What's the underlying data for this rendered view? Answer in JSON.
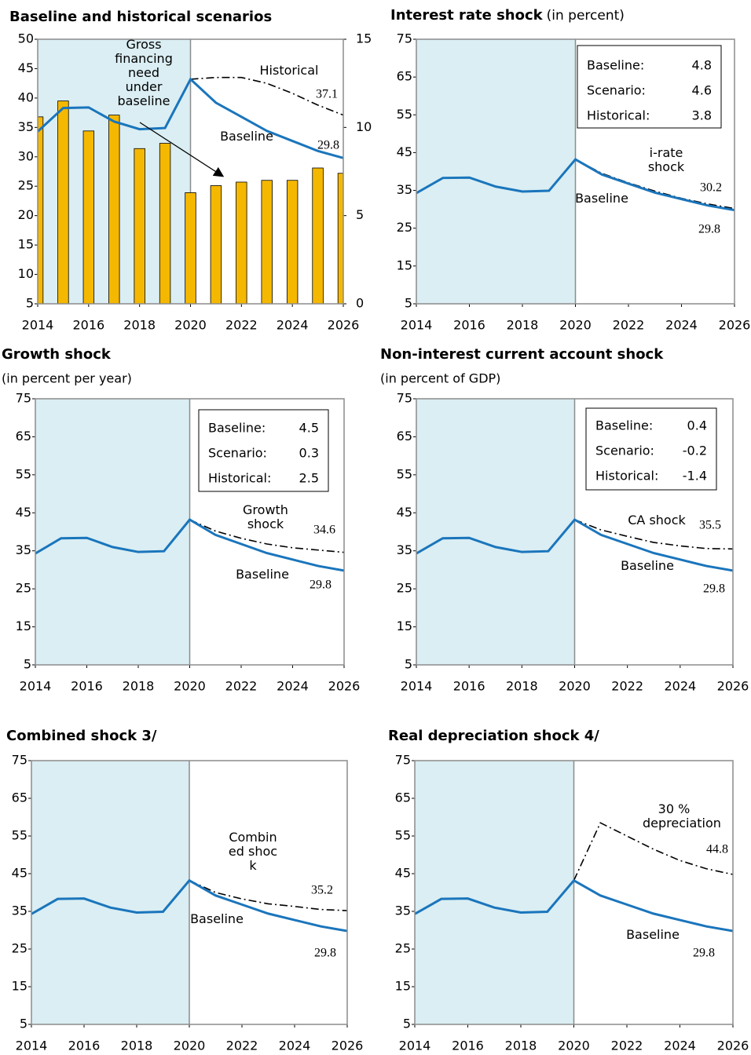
{
  "chart_data": [
    {
      "type": "combo",
      "title": "Baseline and historical scenarios",
      "x": [
        2014,
        2015,
        2016,
        2017,
        2018,
        2019,
        2020,
        2021,
        2022,
        2023,
        2024,
        2025,
        2026
      ],
      "xlim": [
        2014,
        2026
      ],
      "xticks": [
        2014,
        2016,
        2018,
        2020,
        2022,
        2024,
        2026
      ],
      "ylim": [
        5,
        50
      ],
      "yticks": [
        5,
        10,
        15,
        20,
        25,
        30,
        35,
        40,
        45,
        50
      ],
      "y2lim": [
        0,
        15
      ],
      "y2ticks": [
        0,
        5,
        10,
        15
      ],
      "shaded_x": [
        2014,
        2020
      ],
      "shade_color": "#daeef3",
      "series": [
        {
          "name": "Gross financing need under baseline",
          "kind": "bar",
          "axis": "y2",
          "color": "#f5b800",
          "values": [
            10.6,
            11.5,
            9.8,
            10.7,
            8.8,
            9.1,
            6.3,
            6.7,
            6.9,
            7.0,
            7.0,
            7.7,
            7.4
          ]
        },
        {
          "name": "Baseline",
          "kind": "line",
          "line_style": "solid",
          "color": "#1a75bc",
          "values": [
            34.3,
            38.3,
            38.4,
            36.0,
            34.7,
            34.9,
            43.2,
            39.2,
            36.8,
            34.4,
            32.7,
            31.0,
            29.8
          ]
        },
        {
          "name": "Historical",
          "kind": "line",
          "line_style": "dash-dot",
          "color": "#000000",
          "values": [
            null,
            null,
            null,
            null,
            null,
            null,
            43.2,
            43.5,
            43.5,
            42.5,
            40.8,
            38.8,
            37.1
          ]
        }
      ]
    },
    {
      "type": "line",
      "title": "Interest rate shock",
      "subtitle": "(in percent)",
      "x": [
        2014,
        2015,
        2016,
        2017,
        2018,
        2019,
        2020,
        2021,
        2022,
        2023,
        2024,
        2025,
        2026
      ],
      "xlim": [
        2014,
        2026
      ],
      "xticks": [
        2014,
        2016,
        2018,
        2020,
        2022,
        2024,
        2026
      ],
      "ylim": [
        5,
        75
      ],
      "yticks": [
        5,
        15,
        25,
        35,
        45,
        55,
        65,
        75
      ],
      "shaded_x": [
        2014,
        2020
      ],
      "shade_color": "#daeef3",
      "inset": [
        {
          "label": "Baseline:",
          "value": 4.8
        },
        {
          "label": "Scenario:",
          "value": 4.6
        },
        {
          "label": "Historical:",
          "value": 3.8
        }
      ],
      "series": [
        {
          "name": "Baseline",
          "kind": "line",
          "line_style": "solid",
          "color": "#1a75bc",
          "values": [
            34.3,
            38.3,
            38.4,
            36.0,
            34.7,
            34.9,
            43.2,
            39.2,
            36.8,
            34.4,
            32.7,
            31.0,
            29.8
          ]
        },
        {
          "name": "i-rate shock",
          "kind": "line",
          "line_style": "dash-dot",
          "color": "#000000",
          "values": [
            null,
            null,
            null,
            null,
            null,
            null,
            43.2,
            39.5,
            37.0,
            34.8,
            32.9,
            31.4,
            30.2
          ]
        }
      ]
    },
    {
      "type": "line",
      "title": "Growth shock",
      "subtitle": "(in percent per year)",
      "x": [
        2014,
        2015,
        2016,
        2017,
        2018,
        2019,
        2020,
        2021,
        2022,
        2023,
        2024,
        2025,
        2026
      ],
      "xlim": [
        2014,
        2026
      ],
      "xticks": [
        2014,
        2016,
        2018,
        2020,
        2022,
        2024,
        2026
      ],
      "ylim": [
        5,
        75
      ],
      "yticks": [
        5,
        15,
        25,
        35,
        45,
        55,
        65,
        75
      ],
      "shaded_x": [
        2014,
        2020
      ],
      "shade_color": "#daeef3",
      "inset": [
        {
          "label": "Baseline:",
          "value": 4.5
        },
        {
          "label": "Scenario:",
          "value": 0.3
        },
        {
          "label": "Historical:",
          "value": 2.5
        }
      ],
      "series": [
        {
          "name": "Baseline",
          "kind": "line",
          "line_style": "solid",
          "color": "#1a75bc",
          "values": [
            34.3,
            38.3,
            38.4,
            36.0,
            34.7,
            34.9,
            43.2,
            39.2,
            36.8,
            34.4,
            32.7,
            31.0,
            29.8
          ]
        },
        {
          "name": "Growth shock",
          "kind": "line",
          "line_style": "dash-dot",
          "color": "#000000",
          "values": [
            null,
            null,
            null,
            null,
            null,
            null,
            43.2,
            40.2,
            38.3,
            36.8,
            35.8,
            35.2,
            34.6
          ]
        }
      ]
    },
    {
      "type": "line",
      "title": "Non-interest current account shock",
      "subtitle": "(in percent of GDP)",
      "x": [
        2014,
        2015,
        2016,
        2017,
        2018,
        2019,
        2020,
        2021,
        2022,
        2023,
        2024,
        2025,
        2026
      ],
      "xlim": [
        2014,
        2026
      ],
      "xticks": [
        2014,
        2016,
        2018,
        2020,
        2022,
        2024,
        2026
      ],
      "ylim": [
        5,
        75
      ],
      "yticks": [
        5,
        15,
        25,
        35,
        45,
        55,
        65,
        75
      ],
      "shaded_x": [
        2014,
        2020
      ],
      "shade_color": "#daeef3",
      "inset": [
        {
          "label": "Baseline:",
          "value": 0.4
        },
        {
          "label": "Scenario:",
          "value": -0.2
        },
        {
          "label": "Historical:",
          "value": -1.4
        }
      ],
      "series": [
        {
          "name": "Baseline",
          "kind": "line",
          "line_style": "solid",
          "color": "#1a75bc",
          "values": [
            34.3,
            38.3,
            38.4,
            36.0,
            34.7,
            34.9,
            43.2,
            39.2,
            36.8,
            34.4,
            32.7,
            31.0,
            29.8
          ]
        },
        {
          "name": "CA shock",
          "kind": "line",
          "line_style": "dash-dot",
          "color": "#000000",
          "values": [
            null,
            null,
            null,
            null,
            null,
            null,
            43.2,
            40.5,
            38.8,
            37.2,
            36.3,
            35.6,
            35.5
          ]
        }
      ]
    },
    {
      "type": "line",
      "title": "Combined shock  3/",
      "x": [
        2014,
        2015,
        2016,
        2017,
        2018,
        2019,
        2020,
        2021,
        2022,
        2023,
        2024,
        2025,
        2026
      ],
      "xlim": [
        2014,
        2026
      ],
      "xticks": [
        2014,
        2016,
        2018,
        2020,
        2022,
        2024,
        2026
      ],
      "ylim": [
        5,
        75
      ],
      "yticks": [
        5,
        15,
        25,
        35,
        45,
        55,
        65,
        75
      ],
      "shaded_x": [
        2014,
        2020
      ],
      "shade_color": "#daeef3",
      "series": [
        {
          "name": "Baseline",
          "kind": "line",
          "line_style": "solid",
          "color": "#1a75bc",
          "values": [
            34.3,
            38.3,
            38.4,
            36.0,
            34.7,
            34.9,
            43.2,
            39.2,
            36.8,
            34.4,
            32.7,
            31.0,
            29.8
          ]
        },
        {
          "name": "Combined shock",
          "kind": "line",
          "line_style": "dash-dot",
          "color": "#000000",
          "values": [
            null,
            null,
            null,
            null,
            null,
            null,
            43.2,
            40.0,
            38.3,
            37.0,
            36.3,
            35.5,
            35.2
          ]
        }
      ]
    },
    {
      "type": "line",
      "title": "Real depreciation shock  4/",
      "x": [
        2014,
        2015,
        2016,
        2017,
        2018,
        2019,
        2020,
        2021,
        2022,
        2023,
        2024,
        2025,
        2026
      ],
      "xlim": [
        2014,
        2026
      ],
      "xticks": [
        2014,
        2016,
        2018,
        2020,
        2022,
        2024,
        2026
      ],
      "ylim": [
        5,
        75
      ],
      "yticks": [
        5,
        15,
        25,
        35,
        45,
        55,
        65,
        75
      ],
      "shaded_x": [
        2014,
        2020
      ],
      "shade_color": "#daeef3",
      "series": [
        {
          "name": "Baseline",
          "kind": "line",
          "line_style": "solid",
          "color": "#1a75bc",
          "values": [
            34.3,
            38.3,
            38.4,
            36.0,
            34.7,
            34.9,
            43.2,
            39.2,
            36.8,
            34.4,
            32.7,
            31.0,
            29.8
          ]
        },
        {
          "name": "30 % depreciation",
          "kind": "line",
          "line_style": "dash-dot",
          "color": "#000000",
          "values": [
            null,
            null,
            null,
            null,
            null,
            null,
            43.2,
            58.5,
            55.0,
            51.5,
            48.5,
            46.3,
            44.8
          ]
        }
      ]
    }
  ]
}
